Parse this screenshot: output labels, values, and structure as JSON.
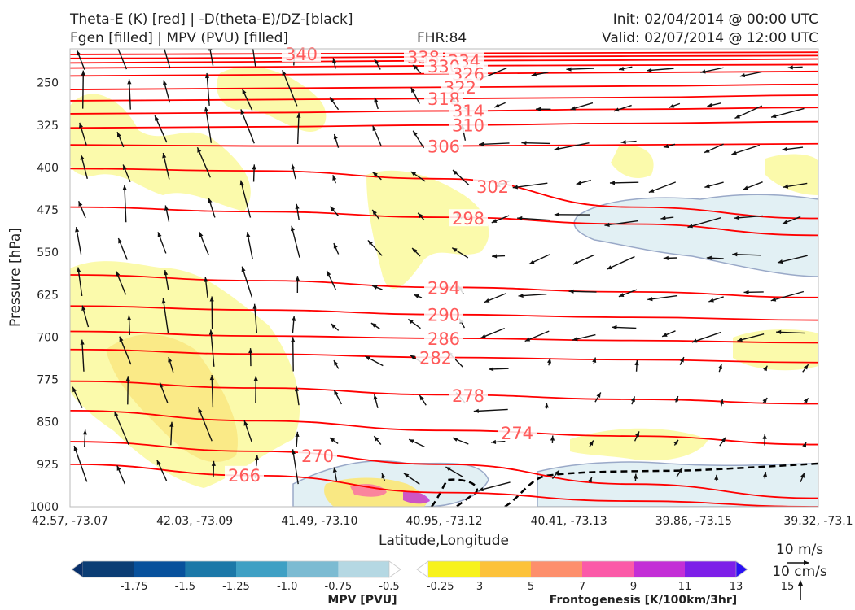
{
  "header": {
    "title_line1": "Theta-E (K) [red] | -D(theta-E)/DZ-[black]",
    "title_line2": "Fgen [filled] | MPV (PVU) [filled]",
    "fhr": "FHR:84",
    "init": "Init: 02/04/2014 @ 00:00 UTC",
    "valid": "Valid: 02/07/2014 @ 12:00 UTC"
  },
  "chart_data": {
    "type": "cross-section",
    "xlabel": "Latitude,Longitude",
    "ylabel": "Pressure [hPa]",
    "x_ticks": [
      "42.57, -73.07",
      "42.03, -73.09",
      "41.49, -73.10",
      "40.95, -73.12",
      "40.41, -73.13",
      "39.86, -73.15",
      "39.32, -73.1"
    ],
    "y_ticks": [
      250,
      325,
      400,
      475,
      550,
      625,
      700,
      775,
      850,
      925,
      1000
    ],
    "ylim": [
      1000,
      190
    ],
    "theta_e_contours": [
      {
        "label": "340",
        "values_hpa": [
          200,
          199,
          198,
          197,
          196
        ]
      },
      {
        "label": "338",
        "values_hpa": [
          207,
          206,
          204,
          203,
          202
        ]
      },
      {
        "label": "334",
        "values_hpa": [
          215,
          213,
          211,
          210,
          208
        ]
      },
      {
        "label": "330",
        "values_hpa": [
          224,
          222,
          220,
          219,
          218
        ]
      },
      {
        "label": "326",
        "values_hpa": [
          238,
          236,
          234,
          232,
          230
        ]
      },
      {
        "label": "322",
        "values_hpa": [
          262,
          260,
          258,
          256,
          253
        ]
      },
      {
        "label": "318",
        "values_hpa": [
          282,
          280,
          278,
          276,
          272
        ]
      },
      {
        "label": "314",
        "values_hpa": [
          305,
          303,
          300,
          297,
          294
        ]
      },
      {
        "label": "310",
        "values_hpa": [
          330,
          328,
          325,
          322,
          319
        ]
      },
      {
        "label": "306",
        "values_hpa": [
          360,
          362,
          362,
          360,
          358
        ]
      },
      {
        "label": "302",
        "values_hpa": [
          402,
          406,
          420,
          470,
          490
        ]
      },
      {
        "label": "298",
        "values_hpa": [
          470,
          478,
          488,
          500,
          520
        ]
      },
      {
        "label": "294",
        "values_hpa": [
          590,
          600,
          612,
          620,
          630
        ]
      },
      {
        "label": "290",
        "values_hpa": [
          645,
          652,
          660,
          665,
          670
        ]
      },
      {
        "label": "286",
        "values_hpa": [
          690,
          698,
          702,
          706,
          710
        ]
      },
      {
        "label": "282",
        "values_hpa": [
          722,
          730,
          736,
          740,
          745
        ]
      },
      {
        "label": "278",
        "values_hpa": [
          778,
          790,
          802,
          810,
          818
        ]
      },
      {
        "label": "274",
        "values_hpa": [
          830,
          848,
          865,
          875,
          890
        ]
      },
      {
        "label": "270",
        "values_hpa": [
          885,
          902,
          925,
          960,
          985
        ]
      },
      {
        "label": "266",
        "values_hpa": [
          925,
          945,
          975,
          990,
          1000
        ]
      }
    ],
    "colorbar_mpv": {
      "label": "MPV [PVU]",
      "ticks": [
        "-1.75",
        "-1.5",
        "-1.25",
        "-1.0",
        "-0.75",
        "-0.5",
        "-0.25"
      ],
      "colors": [
        "#08306b",
        "#0b3d74",
        "#08519c",
        "#1c78a8",
        "#3fa0c4",
        "#7cbbd2",
        "#b5d8e3",
        "#ffffff"
      ]
    },
    "colorbar_fgen": {
      "label": "Frontogenesis [K/100km/3hr]",
      "ticks": [
        "3",
        "5",
        "7",
        "9",
        "11",
        "13",
        "15"
      ],
      "colors": [
        "#ffffff",
        "#f7f21b",
        "#fcc23a",
        "#fd8f6c",
        "#fb5aa8",
        "#c32fd6",
        "#7d1fe8",
        "#2a10f4"
      ]
    },
    "vector_key": {
      "horizontal": "10 m/s",
      "vertical": "10 cm/s"
    }
  },
  "colors": {
    "theta_e": "#ff0000",
    "contour_label": "#ff5a5a",
    "fgen_light": "#fbfaa6",
    "fgen_mid": "#f9e883",
    "mpv_light": "#e2f0f4",
    "mpv_edge": "#9aa9c8"
  }
}
